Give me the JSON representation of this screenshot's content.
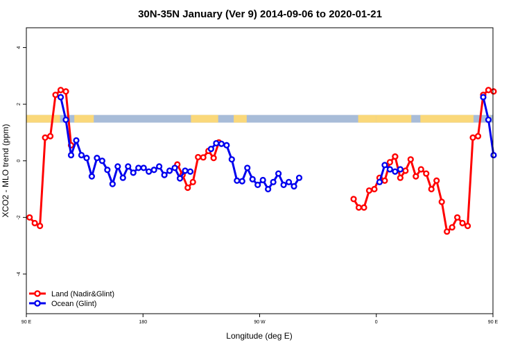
{
  "chart_data": {
    "type": "line",
    "title": "30N-35N January (Ver 9)   2014-09-06 to 2020-01-21",
    "xlabel": "Longitude (deg E)",
    "ylabel": "XCO2 - MLO trend (ppm)",
    "xlim": [
      90,
      450
    ],
    "ylim": [
      -5.4,
      4.7
    ],
    "x_ticks": [
      {
        "value": 90,
        "label": "90 E"
      },
      {
        "value": 180,
        "label": "180"
      },
      {
        "value": 270,
        "label": "90 W"
      },
      {
        "value": 360,
        "label": "0"
      },
      {
        "value": 450,
        "label": "90 E"
      },
      {
        "value": 540,
        "label": "180"
      }
    ],
    "y_ticks": [
      {
        "value": 4,
        "label": "4"
      },
      {
        "value": 2,
        "label": "2"
      },
      {
        "value": 0,
        "label": "0"
      },
      {
        "value": -2,
        "label": "-2"
      },
      {
        "value": -4,
        "label": "-4"
      }
    ],
    "grid": false,
    "legend_position": "bottom-left",
    "land_mask": {
      "y_range": [
        1.35,
        1.62
      ],
      "ocean_color": "#a8bcd8",
      "land_color": "#fad87a",
      "land_segments": [
        [
          90,
          116
        ],
        [
          127,
          142
        ],
        [
          217,
          238
        ],
        [
          250,
          260
        ],
        [
          346,
          360
        ],
        [
          360,
          387
        ],
        [
          394,
          435
        ],
        [
          447,
          448
        ]
      ]
    },
    "series": [
      {
        "name": "Land (Nadir&Glint)",
        "color": "#ff0000",
        "segments": [
          [
            [
              92.5,
              -2.0
            ],
            [
              96.5,
              -2.2
            ],
            [
              100.5,
              -2.3
            ],
            [
              104.5,
              0.82
            ],
            [
              108.5,
              0.87
            ],
            [
              112.5,
              2.33
            ],
            [
              116.5,
              2.5
            ],
            [
              120.5,
              2.45
            ],
            [
              124.5,
              0.55
            ]
          ],
          [
            [
              206.5,
              -0.13
            ],
            [
              210.5,
              -0.5
            ],
            [
              214.5,
              -0.95
            ],
            [
              218.5,
              -0.75
            ],
            [
              222.5,
              0.13
            ],
            [
              226.5,
              0.12
            ],
            [
              230.5,
              0.35
            ],
            [
              234.5,
              0.1
            ],
            [
              238.5,
              0.65
            ]
          ],
          [
            [
              342.5,
              -1.35
            ],
            [
              346.5,
              -1.65
            ],
            [
              350.5,
              -1.65
            ],
            [
              354.5,
              -1.05
            ],
            [
              358.5,
              -1.0
            ],
            [
              362.5,
              -0.6
            ],
            [
              366.5,
              -0.7
            ],
            [
              370.5,
              -0.05
            ],
            [
              374.5,
              0.15
            ]
          ],
          [
            [
              374.5,
              0.15
            ],
            [
              378.5,
              -0.6
            ],
            [
              382.5,
              -0.35
            ],
            [
              386.5,
              0.05
            ],
            [
              390.5,
              -0.55
            ],
            [
              394.5,
              -0.3
            ],
            [
              398.5,
              -0.45
            ],
            [
              402.5,
              -1.0
            ],
            [
              406.5,
              -0.7
            ],
            [
              410.5,
              -1.45
            ],
            [
              414.5,
              -2.5
            ],
            [
              418.5,
              -2.35
            ],
            [
              422.5,
              -2.0
            ],
            [
              426.5,
              -2.2
            ],
            [
              430.5,
              -2.3
            ],
            [
              434.5,
              0.82
            ],
            [
              438.5,
              0.87
            ],
            [
              442.5,
              2.33
            ],
            [
              446.5,
              2.5
            ],
            [
              450.5,
              2.45
            ]
          ]
        ]
      },
      {
        "name": "Ocean (Glint)",
        "color": "#0000ee",
        "segments": [
          [
            [
              116.5,
              2.25
            ],
            [
              120.5,
              1.45
            ],
            [
              124.5,
              0.2
            ],
            [
              128.5,
              0.72
            ],
            [
              132.5,
              0.2
            ],
            [
              136.5,
              0.1
            ],
            [
              140.5,
              -0.55
            ],
            [
              144.5,
              0.1
            ],
            [
              148.5,
              0.0
            ],
            [
              152.5,
              -0.32
            ],
            [
              156.5,
              -0.82
            ],
            [
              160.5,
              -0.2
            ],
            [
              164.5,
              -0.6
            ],
            [
              168.5,
              -0.2
            ],
            [
              172.5,
              -0.42
            ],
            [
              176.5,
              -0.25
            ],
            [
              180.5,
              -0.25
            ],
            [
              184.5,
              -0.38
            ],
            [
              188.5,
              -0.32
            ],
            [
              192.5,
              -0.2
            ],
            [
              196.5,
              -0.5
            ],
            [
              200.5,
              -0.35
            ],
            [
              204.5,
              -0.25
            ],
            [
              208.5,
              -0.62
            ],
            [
              212.5,
              -0.35
            ],
            [
              216.5,
              -0.38
            ]
          ],
          [
            [
              232.5,
              0.42
            ],
            [
              236.5,
              0.62
            ],
            [
              240.5,
              0.6
            ],
            [
              244.5,
              0.55
            ],
            [
              248.5,
              0.05
            ],
            [
              252.5,
              -0.7
            ],
            [
              256.5,
              -0.72
            ],
            [
              260.5,
              -0.25
            ],
            [
              264.5,
              -0.65
            ],
            [
              268.5,
              -0.85
            ],
            [
              272.5,
              -0.68
            ],
            [
              276.5,
              -1.0
            ],
            [
              280.5,
              -0.75
            ],
            [
              284.5,
              -0.45
            ],
            [
              288.5,
              -0.85
            ],
            [
              292.5,
              -0.75
            ],
            [
              296.5,
              -0.9
            ],
            [
              300.5,
              -0.6
            ]
          ],
          [
            [
              362.5,
              -0.75
            ],
            [
              366.5,
              -0.15
            ],
            [
              370.5,
              -0.3
            ],
            [
              374.5,
              -0.38
            ],
            [
              378.5,
              -0.3
            ]
          ],
          [
            [
              442.5,
              2.25
            ],
            [
              446.5,
              1.45
            ],
            [
              450.5,
              0.2
            ]
          ]
        ]
      }
    ]
  }
}
